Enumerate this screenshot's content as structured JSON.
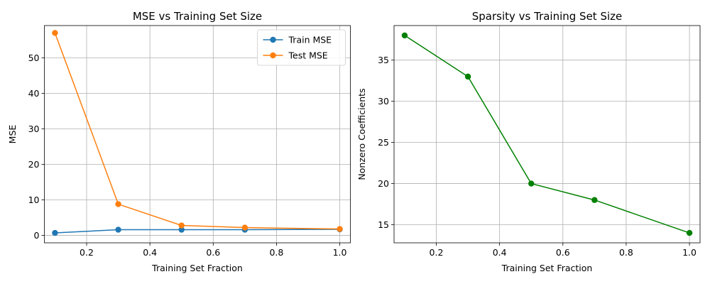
{
  "chart_data": [
    {
      "type": "line",
      "title": "MSE vs Training Set Size",
      "xlabel": "Training Set Fraction",
      "ylabel": "MSE",
      "xlim": [
        0.0665,
        1.0335
      ],
      "ylim": [
        -2.09,
        59.09
      ],
      "xticks": [
        0.2,
        0.4,
        0.6,
        0.8,
        1.0
      ],
      "xtick_labels": [
        "0.2",
        "0.4",
        "0.6",
        "0.8",
        "1.0"
      ],
      "yticks": [
        0,
        10,
        20,
        30,
        40,
        50
      ],
      "ytick_labels": [
        "0",
        "10",
        "20",
        "30",
        "40",
        "50"
      ],
      "grid": true,
      "legend_position": "top-right",
      "x": [
        0.1,
        0.3,
        0.5,
        0.7,
        1.0
      ],
      "series": [
        {
          "name": "Train MSE",
          "color": "#1f77b4",
          "values": [
            0.7,
            1.6,
            1.6,
            1.6,
            1.7
          ]
        },
        {
          "name": "Test MSE",
          "color": "#ff7f0e",
          "values": [
            57.0,
            8.8,
            2.8,
            2.2,
            1.8
          ]
        }
      ]
    },
    {
      "type": "line",
      "title": "Sparsity vs Training Set Size",
      "xlabel": "Training Set Fraction",
      "ylabel": "Nonzero Coefficients",
      "xlim": [
        0.0665,
        1.0335
      ],
      "ylim": [
        12.8,
        39.2
      ],
      "xticks": [
        0.2,
        0.4,
        0.6,
        0.8,
        1.0
      ],
      "xtick_labels": [
        "0.2",
        "0.4",
        "0.6",
        "0.8",
        "1.0"
      ],
      "yticks": [
        15,
        20,
        25,
        30,
        35
      ],
      "ytick_labels": [
        "15",
        "20",
        "25",
        "30",
        "35"
      ],
      "grid": true,
      "x": [
        0.1,
        0.3,
        0.5,
        0.7,
        1.0
      ],
      "series": [
        {
          "name": "Nonzero Coefficients",
          "color": "#008000",
          "values": [
            38,
            33,
            20,
            18,
            14
          ]
        }
      ]
    }
  ]
}
